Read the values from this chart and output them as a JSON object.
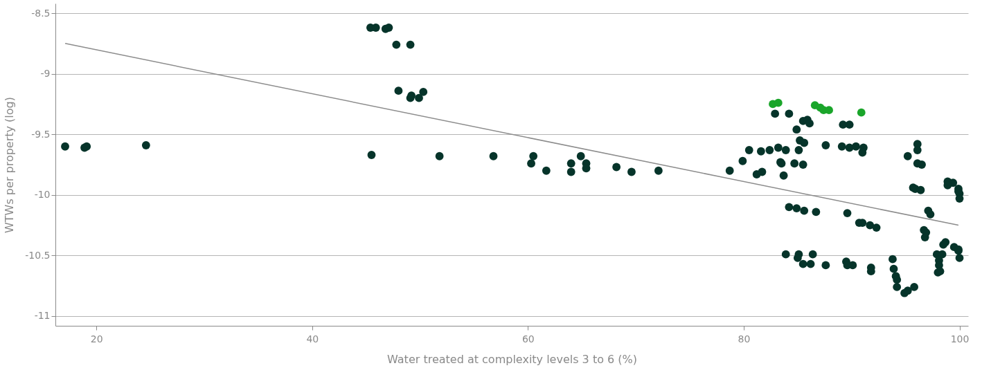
{
  "chart_data": {
    "type": "scatter",
    "xlabel": "Water treated at complexity levels 3 to 6 (%)",
    "ylabel": "WTWs per property (log)",
    "xlim": [
      16.2,
      100.8
    ],
    "ylim": [
      -11.08,
      -8.42
    ],
    "xticks": [
      20,
      40,
      60,
      80,
      100
    ],
    "yticks": [
      -8.5,
      -9,
      -9.5,
      -10,
      -10.5,
      -11
    ],
    "grid": "y",
    "marker": "circle",
    "series": [
      {
        "color": "#06342a",
        "x": [
          17.1,
          18.9,
          19.1,
          24.6,
          45.4,
          45.9,
          46.8,
          47.1,
          47.8,
          49.1,
          45.5,
          48.0,
          49.1,
          49.2,
          49.9,
          50.3,
          51.8,
          56.8,
          60.5,
          60.3,
          61.7,
          64.0,
          64.0,
          64.9,
          65.4,
          65.4,
          68.2,
          69.6,
          72.1,
          78.7,
          82.9,
          84.2,
          85.5,
          85.9,
          86.1,
          84.9,
          89.2,
          89.8,
          85.2,
          85.6,
          87.6,
          89.1,
          89.8,
          90.4,
          91.1,
          91.0,
          80.5,
          81.6,
          82.4,
          83.2,
          83.9,
          85.1,
          79.9,
          81.2,
          81.7,
          83.4,
          83.5,
          83.7,
          84.7,
          85.5,
          96.1,
          96.1,
          95.2,
          96.1,
          96.5,
          95.7,
          95.9,
          96.4,
          98.9,
          99.4,
          98.9,
          99.9,
          100.0,
          100.0,
          99.9,
          84.2,
          84.9,
          85.6,
          86.7,
          89.6,
          90.7,
          91.0,
          91.7,
          92.3,
          97.1,
          97.3,
          96.7,
          96.8,
          96.9,
          98.7,
          98.5,
          99.5,
          99.9,
          100.0,
          99.9,
          83.9,
          85.1,
          85.0,
          85.5,
          86.2,
          86.4,
          87.6,
          89.5,
          89.6,
          90.1,
          91.8,
          91.8,
          93.8,
          93.9,
          94.1,
          94.2,
          94.2,
          94.9,
          95.2,
          95.8,
          97.9,
          98.4,
          98.1,
          98.1,
          98.0,
          98.2
        ],
        "values": [
          -9.6,
          -9.61,
          -9.6,
          -9.59,
          -8.62,
          -8.62,
          -8.63,
          -8.62,
          -8.76,
          -8.76,
          -9.67,
          -9.14,
          -9.2,
          -9.18,
          -9.2,
          -9.15,
          -9.68,
          -9.68,
          -9.68,
          -9.74,
          -9.8,
          -9.74,
          -9.81,
          -9.68,
          -9.74,
          -9.78,
          -9.77,
          -9.81,
          -9.8,
          -9.8,
          -9.33,
          -9.33,
          -9.39,
          -9.38,
          -9.41,
          -9.46,
          -9.42,
          -9.42,
          -9.55,
          -9.57,
          -9.59,
          -9.6,
          -9.61,
          -9.6,
          -9.61,
          -9.65,
          -9.63,
          -9.64,
          -9.63,
          -9.61,
          -9.63,
          -9.63,
          -9.72,
          -9.83,
          -9.81,
          -9.73,
          -9.74,
          -9.84,
          -9.74,
          -9.75,
          -9.58,
          -9.63,
          -9.68,
          -9.74,
          -9.75,
          -9.94,
          -9.95,
          -9.96,
          -9.89,
          -9.9,
          -9.92,
          -9.95,
          -9.99,
          -10.03,
          -9.97,
          -10.1,
          -10.11,
          -10.13,
          -10.14,
          -10.15,
          -10.23,
          -10.23,
          -10.25,
          -10.27,
          -10.13,
          -10.16,
          -10.29,
          -10.35,
          -10.31,
          -10.39,
          -10.41,
          -10.43,
          -10.46,
          -10.52,
          -10.45,
          -10.49,
          -10.49,
          -10.52,
          -10.57,
          -10.57,
          -10.49,
          -10.58,
          -10.55,
          -10.58,
          -10.58,
          -10.6,
          -10.63,
          -10.53,
          -10.61,
          -10.67,
          -10.7,
          -10.76,
          -10.81,
          -10.79,
          -10.76,
          -10.49,
          -10.49,
          -10.54,
          -10.58,
          -10.64,
          -10.63
        ]
      },
      {
        "color": "#1aa52a",
        "x": [
          82.7,
          83.2,
          86.6,
          87.1,
          87.4,
          87.9,
          90.9
        ],
        "values": [
          -9.25,
          -9.24,
          -9.26,
          -9.28,
          -9.3,
          -9.3,
          -9.32
        ]
      },
      {
        "type": "line",
        "color": "#8c8c8c",
        "line_style": "solid",
        "marker": "none",
        "x": [
          17.1,
          99.9
        ],
        "values": [
          -8.75,
          -10.25
        ]
      }
    ]
  }
}
